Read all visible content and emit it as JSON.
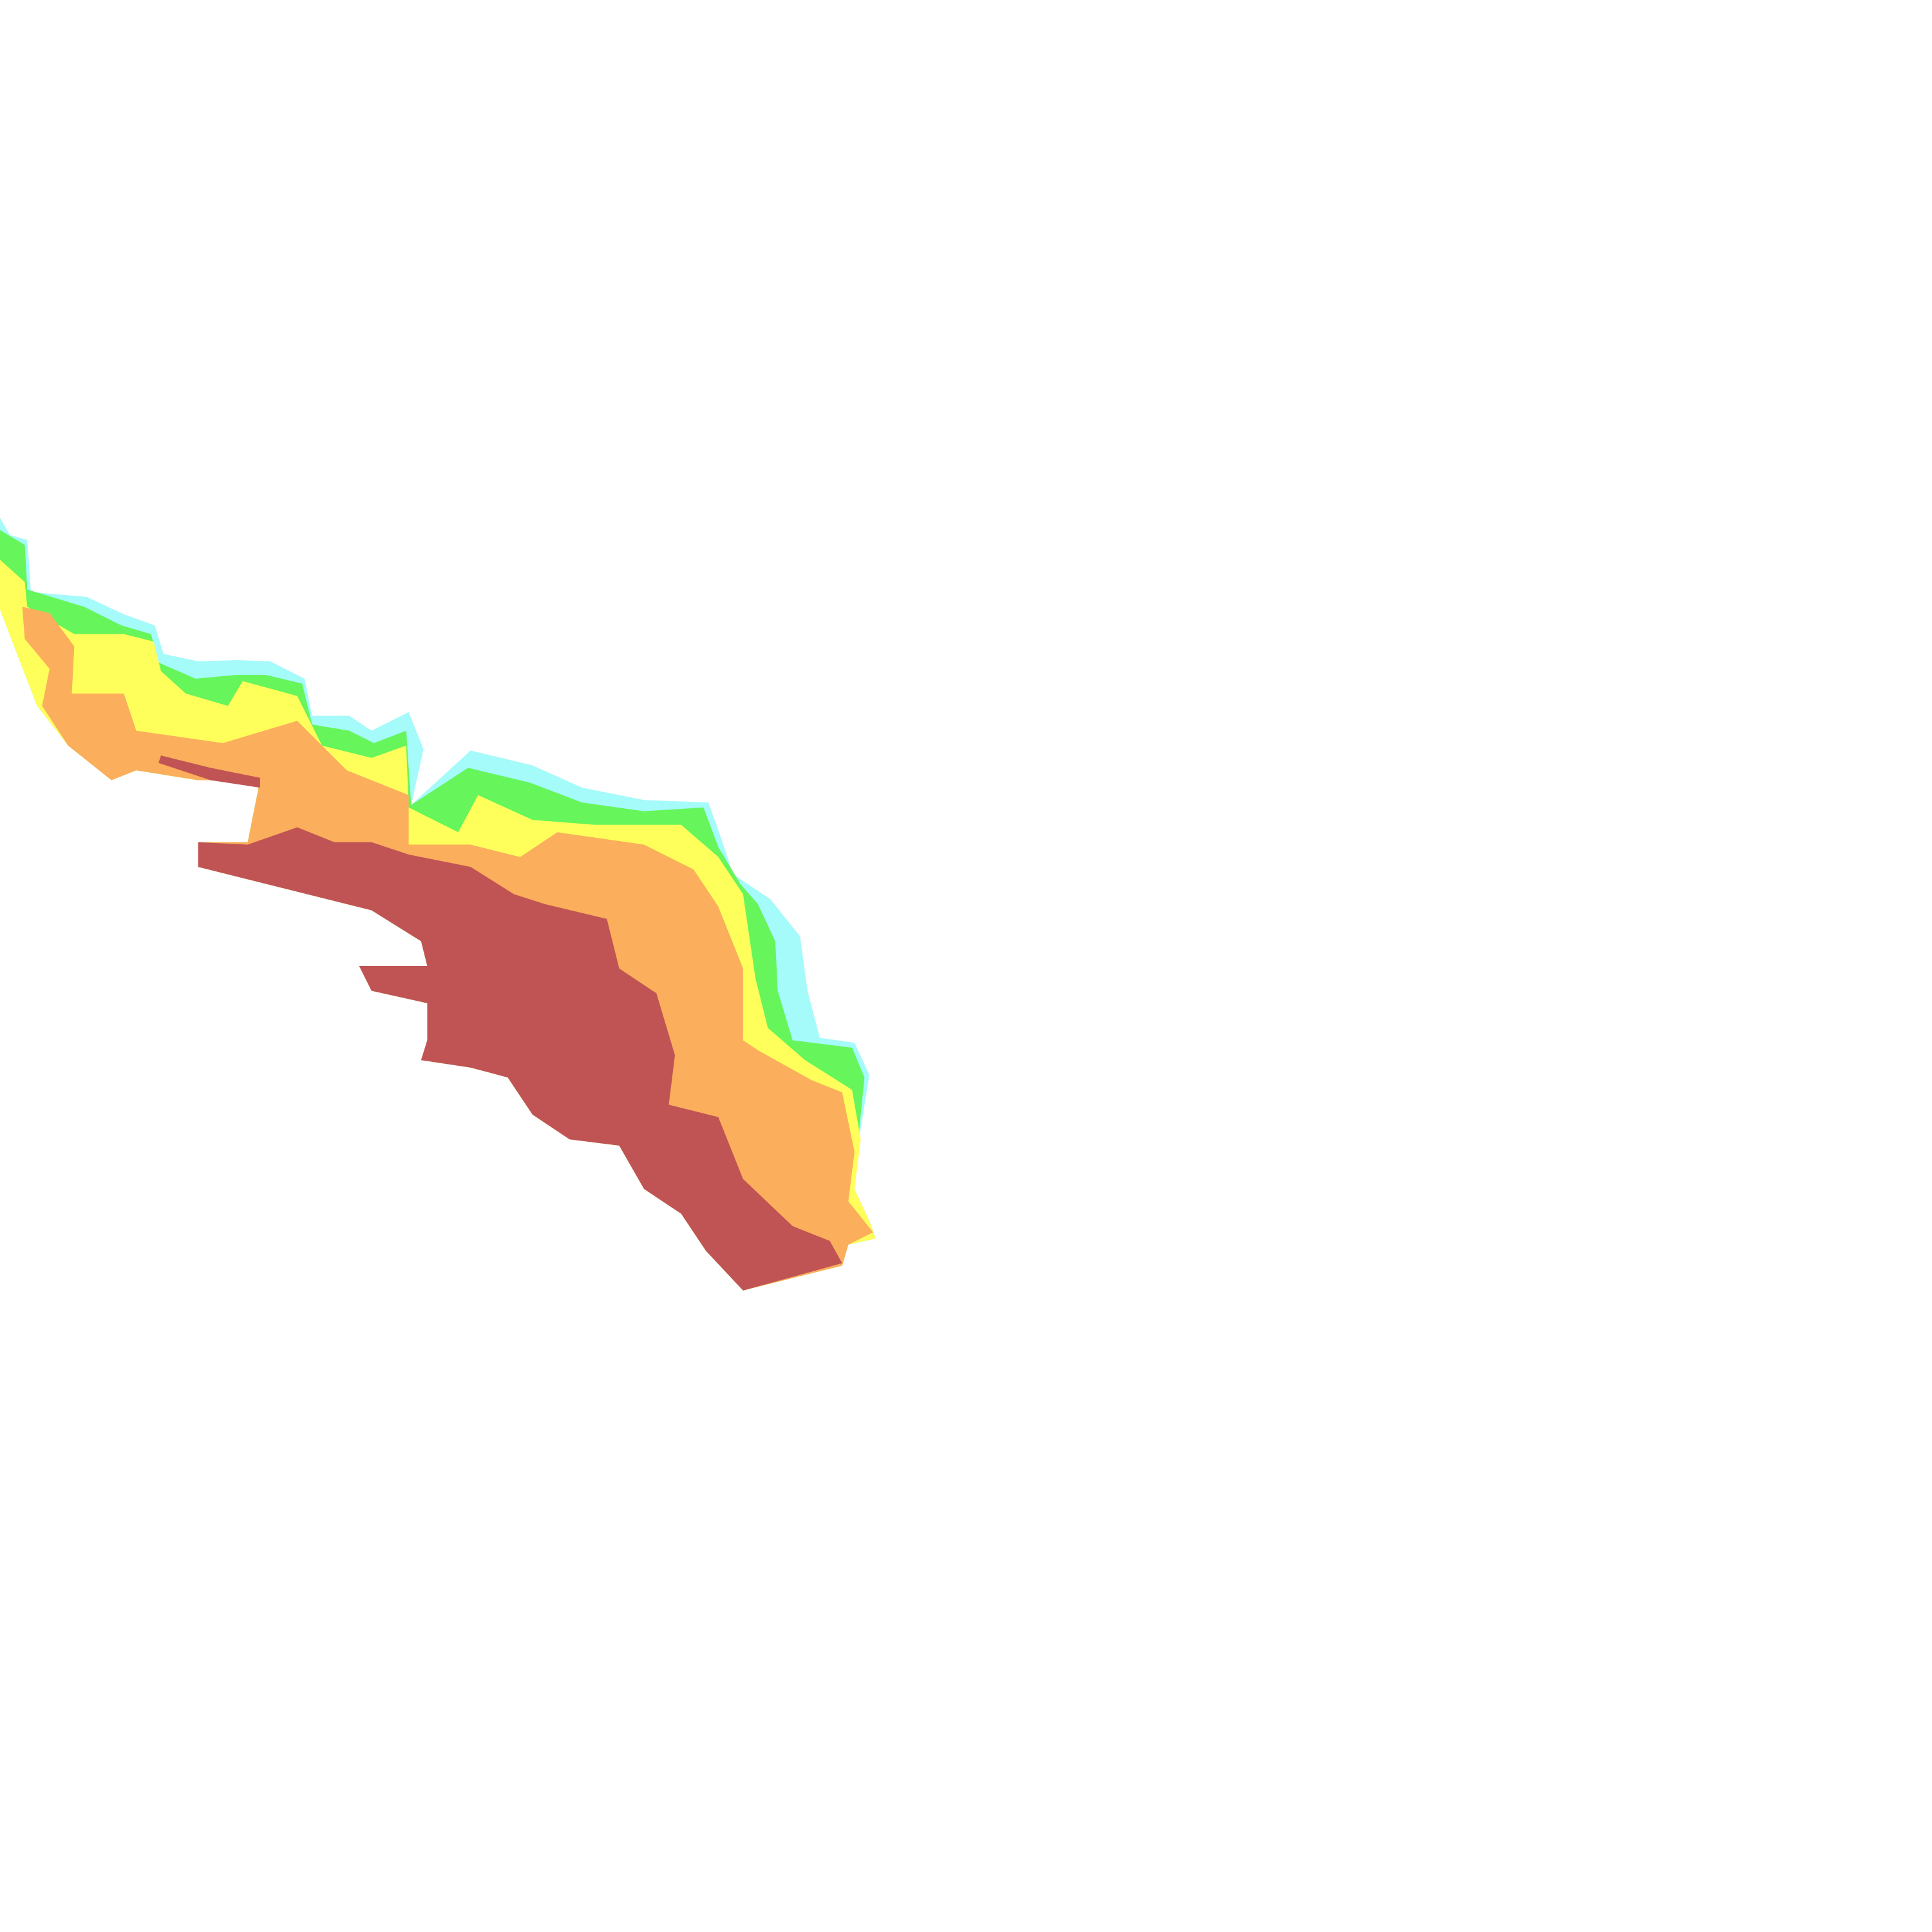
{
  "map": {
    "background": "#ffffff",
    "zone_colors": {
      "cyan": "#A5FAFA",
      "green": "#66F55A",
      "yellow": "#FFFF5C",
      "orange": "#FBAE5C",
      "red": "#C05454"
    }
  }
}
